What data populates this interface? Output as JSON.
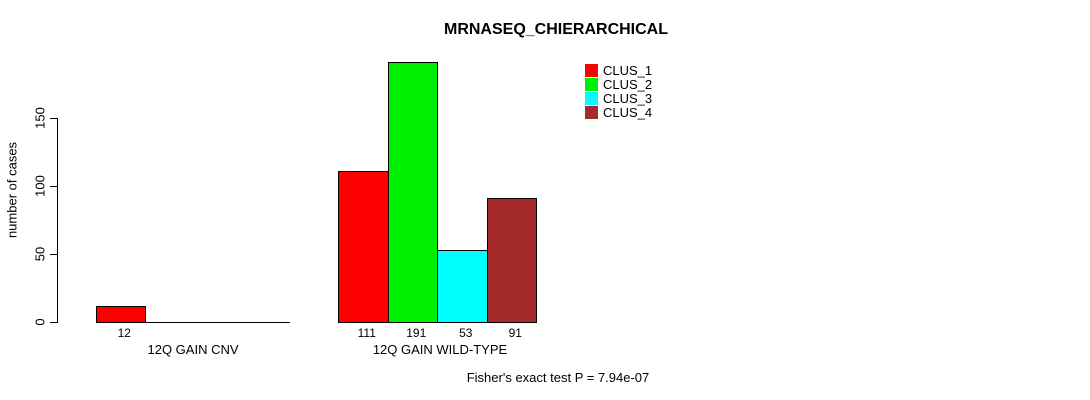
{
  "chart_data": {
    "type": "bar",
    "title": "MRNASEQ_CHIERARCHICAL",
    "ylabel": "number of cases",
    "xlabel": "",
    "footnote": "Fisher's exact test P = 7.94e-07",
    "fisher_p": "7.94e-07",
    "yticks": [
      0,
      50,
      100,
      150
    ],
    "ylim": [
      0,
      150
    ],
    "grid": false,
    "legend_position": "top-right",
    "legend": [
      {
        "label": "CLUS_1",
        "color": "#FF0000"
      },
      {
        "label": "CLUS_2",
        "color": "#00EE00"
      },
      {
        "label": "CLUS_3",
        "color": "#00FFFF"
      },
      {
        "label": "CLUS_4",
        "color": "#A52A2A"
      }
    ],
    "categories": [
      "12Q GAIN CNV",
      "12Q GAIN WILD-TYPE"
    ],
    "groups": [
      {
        "label": "12Q GAIN CNV",
        "slots": 4,
        "bars": [
          {
            "cluster": "CLUS_1",
            "value": 12,
            "color": "#FF0000",
            "slot": 0
          }
        ]
      },
      {
        "label": "12Q GAIN WILD-TYPE",
        "slots": 4,
        "bars": [
          {
            "cluster": "CLUS_1",
            "value": 111,
            "color": "#FF0000",
            "slot": 0
          },
          {
            "cluster": "CLUS_2",
            "value": 191,
            "color": "#00EE00",
            "slot": 1
          },
          {
            "cluster": "CLUS_3",
            "value": 53,
            "color": "#00FFFF",
            "slot": 2
          },
          {
            "cluster": "CLUS_4",
            "value": 91,
            "color": "#A52A2A",
            "slot": 3
          }
        ]
      }
    ]
  }
}
